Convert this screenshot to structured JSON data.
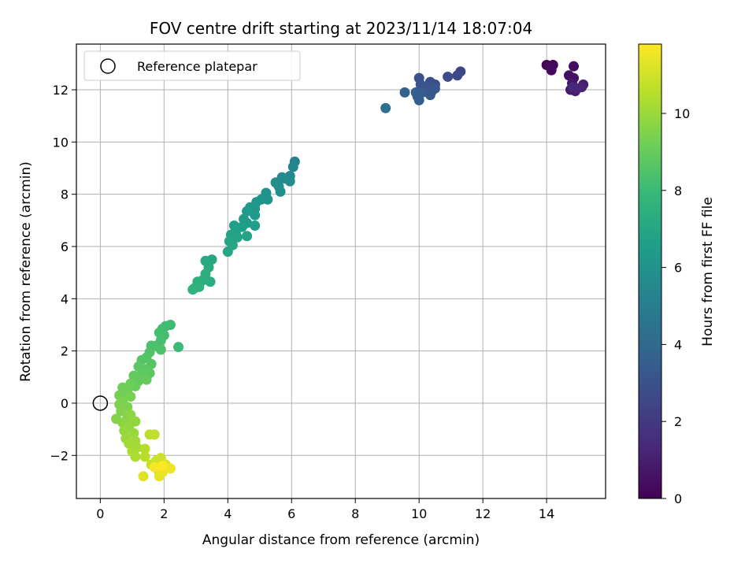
{
  "chart_data": {
    "type": "scatter",
    "title": "FOV centre drift starting at 2023/11/14 18:07:04",
    "xlabel": "Angular distance from reference (arcmin)",
    "ylabel": "Rotation from reference (arcmin)",
    "xlim": [
      -0.75,
      15.85
    ],
    "ylim": [
      -3.65,
      13.75
    ],
    "xticks": [
      0,
      2,
      4,
      6,
      8,
      10,
      12,
      14
    ],
    "xtick_labels": [
      "0",
      "2",
      "4",
      "6",
      "8",
      "10",
      "12",
      "14"
    ],
    "yticks": [
      -2,
      0,
      2,
      4,
      6,
      8,
      10,
      12
    ],
    "ytick_labels": [
      "−2",
      "0",
      "2",
      "4",
      "6",
      "8",
      "10",
      "12"
    ],
    "grid": true,
    "legend": {
      "placement": "top-left",
      "entries": [
        "Reference platepar"
      ]
    },
    "reference_point": {
      "x": 0,
      "y": 0,
      "marker": "open-circle",
      "edge_color": "#000000"
    },
    "colorbar": {
      "label": "Hours from first FF file",
      "range": [
        0,
        11.8
      ],
      "ticks": [
        0,
        2,
        4,
        6,
        8,
        10
      ],
      "tick_labels": [
        "0",
        "2",
        "4",
        "6",
        "8",
        "10"
      ],
      "colormap": "viridis"
    },
    "series": [
      {
        "fields": [
          "x",
          "y",
          "hours"
        ],
        "points": [
          [
            14.0,
            12.95,
            0.05
          ],
          [
            14.2,
            12.95,
            0.15
          ],
          [
            14.15,
            12.75,
            0.25
          ],
          [
            14.1,
            12.9,
            0.3
          ],
          [
            14.85,
            12.9,
            0.4
          ],
          [
            14.7,
            12.55,
            0.5
          ],
          [
            14.85,
            12.45,
            0.6
          ],
          [
            14.8,
            12.25,
            0.7
          ],
          [
            14.75,
            12.0,
            0.8
          ],
          [
            14.9,
            11.95,
            0.9
          ],
          [
            15.15,
            12.2,
            1.0
          ],
          [
            15.1,
            12.1,
            1.1
          ],
          [
            14.95,
            12.05,
            1.2
          ],
          [
            14.82,
            12.1,
            1.3
          ],
          [
            11.3,
            12.7,
            2.5
          ],
          [
            11.2,
            12.55,
            2.6
          ],
          [
            10.9,
            12.5,
            2.7
          ],
          [
            10.5,
            12.2,
            2.8
          ],
          [
            10.35,
            12.3,
            2.9
          ],
          [
            10.0,
            12.45,
            3.0
          ],
          [
            10.05,
            12.2,
            3.05
          ],
          [
            10.25,
            12.05,
            3.1
          ],
          [
            10.4,
            11.95,
            3.2
          ],
          [
            10.5,
            12.05,
            3.25
          ],
          [
            10.35,
            11.8,
            3.3
          ],
          [
            10.1,
            11.9,
            3.4
          ],
          [
            9.95,
            11.75,
            3.45
          ],
          [
            9.9,
            11.9,
            3.5
          ],
          [
            10.0,
            11.6,
            3.55
          ],
          [
            9.55,
            11.9,
            3.7
          ],
          [
            8.95,
            11.3,
            4.4
          ],
          [
            6.1,
            9.25,
            5.3
          ],
          [
            6.05,
            9.05,
            5.4
          ],
          [
            5.95,
            8.7,
            5.5
          ],
          [
            5.8,
            8.6,
            5.55
          ],
          [
            5.7,
            8.65,
            5.6
          ],
          [
            5.95,
            8.5,
            5.65
          ],
          [
            5.6,
            8.3,
            5.75
          ],
          [
            5.5,
            8.45,
            5.8
          ],
          [
            5.65,
            8.1,
            5.85
          ],
          [
            5.2,
            8.05,
            6.0
          ],
          [
            5.25,
            7.8,
            6.05
          ],
          [
            5.05,
            7.8,
            6.1
          ],
          [
            4.9,
            7.7,
            6.2
          ],
          [
            4.85,
            7.45,
            6.25
          ],
          [
            4.7,
            7.5,
            6.3
          ],
          [
            4.6,
            7.35,
            6.35
          ],
          [
            4.85,
            7.2,
            6.4
          ],
          [
            4.5,
            7.05,
            6.45
          ],
          [
            4.6,
            6.9,
            6.5
          ],
          [
            4.85,
            6.8,
            6.55
          ],
          [
            4.45,
            6.75,
            6.6
          ],
          [
            4.2,
            6.8,
            6.65
          ],
          [
            4.25,
            6.55,
            6.7
          ],
          [
            4.6,
            6.4,
            6.75
          ],
          [
            4.1,
            6.45,
            6.8
          ],
          [
            4.3,
            6.35,
            6.85
          ],
          [
            4.05,
            6.2,
            6.9
          ],
          [
            4.15,
            6.05,
            6.95
          ],
          [
            4.0,
            5.8,
            7.0
          ],
          [
            3.5,
            5.5,
            7.1
          ],
          [
            3.3,
            5.45,
            7.15
          ],
          [
            3.4,
            5.2,
            7.2
          ],
          [
            3.45,
            4.65,
            7.3
          ],
          [
            3.2,
            4.7,
            7.35
          ],
          [
            3.3,
            4.95,
            7.4
          ],
          [
            3.05,
            4.65,
            7.45
          ],
          [
            3.1,
            4.45,
            7.5
          ],
          [
            2.9,
            4.35,
            7.55
          ],
          [
            2.95,
            4.4,
            7.6
          ],
          [
            2.45,
            2.15,
            8.0
          ],
          [
            2.2,
            3.0,
            8.05
          ],
          [
            2.05,
            2.95,
            8.1
          ],
          [
            1.95,
            2.85,
            8.15
          ],
          [
            2.0,
            2.6,
            8.2
          ],
          [
            1.85,
            2.7,
            8.25
          ],
          [
            1.9,
            2.4,
            8.3
          ],
          [
            1.75,
            2.2,
            8.35
          ],
          [
            1.6,
            2.2,
            8.4
          ],
          [
            1.9,
            2.05,
            8.45
          ],
          [
            1.55,
            1.95,
            8.5
          ],
          [
            1.45,
            1.75,
            8.55
          ],
          [
            1.3,
            1.65,
            8.6
          ],
          [
            1.6,
            1.5,
            8.65
          ],
          [
            1.45,
            1.3,
            8.7
          ],
          [
            1.2,
            1.4,
            8.75
          ],
          [
            1.55,
            1.15,
            8.8
          ],
          [
            1.3,
            1.1,
            8.85
          ],
          [
            1.05,
            1.05,
            8.9
          ],
          [
            1.2,
            0.85,
            8.95
          ],
          [
            1.45,
            0.9,
            9.0
          ],
          [
            1.1,
            0.65,
            9.05
          ],
          [
            0.95,
            0.75,
            9.1
          ],
          [
            0.85,
            0.5,
            9.15
          ],
          [
            0.7,
            0.6,
            9.2
          ],
          [
            0.75,
            0.35,
            9.25
          ],
          [
            0.6,
            0.3,
            9.3
          ],
          [
            0.95,
            0.25,
            9.35
          ],
          [
            0.7,
            0.05,
            9.4
          ],
          [
            0.6,
            -0.05,
            9.45
          ],
          [
            0.85,
            -0.15,
            9.5
          ],
          [
            0.65,
            -0.3,
            9.55
          ],
          [
            0.5,
            -0.6,
            9.6
          ],
          [
            0.85,
            -0.55,
            9.65
          ],
          [
            0.7,
            -0.75,
            9.7
          ],
          [
            0.95,
            -0.45,
            9.75
          ],
          [
            1.1,
            -0.7,
            9.8
          ],
          [
            0.9,
            -0.9,
            9.85
          ],
          [
            0.75,
            -1.05,
            9.9
          ],
          [
            1.05,
            -1.15,
            9.95
          ],
          [
            0.8,
            -1.35,
            10.0
          ],
          [
            1.1,
            -1.45,
            10.1
          ],
          [
            0.9,
            -1.55,
            10.15
          ],
          [
            1.15,
            -1.7,
            10.2
          ],
          [
            1.0,
            -1.85,
            10.25
          ],
          [
            1.1,
            -2.05,
            10.35
          ],
          [
            1.4,
            -1.75,
            10.45
          ],
          [
            1.4,
            -2.05,
            10.55
          ],
          [
            1.55,
            -1.2,
            10.65
          ],
          [
            1.7,
            -1.2,
            10.7
          ],
          [
            1.6,
            -2.35,
            10.8
          ],
          [
            1.75,
            -2.2,
            10.9
          ],
          [
            1.9,
            -2.1,
            10.95
          ],
          [
            1.8,
            -2.55,
            11.05
          ],
          [
            2.05,
            -2.35,
            11.15
          ],
          [
            1.35,
            -2.8,
            11.25
          ],
          [
            1.85,
            -2.8,
            11.35
          ],
          [
            1.95,
            -2.65,
            11.45
          ],
          [
            2.2,
            -2.5,
            11.55
          ],
          [
            1.7,
            -2.45,
            11.65
          ],
          [
            1.95,
            -2.4,
            11.75
          ]
        ]
      }
    ]
  }
}
